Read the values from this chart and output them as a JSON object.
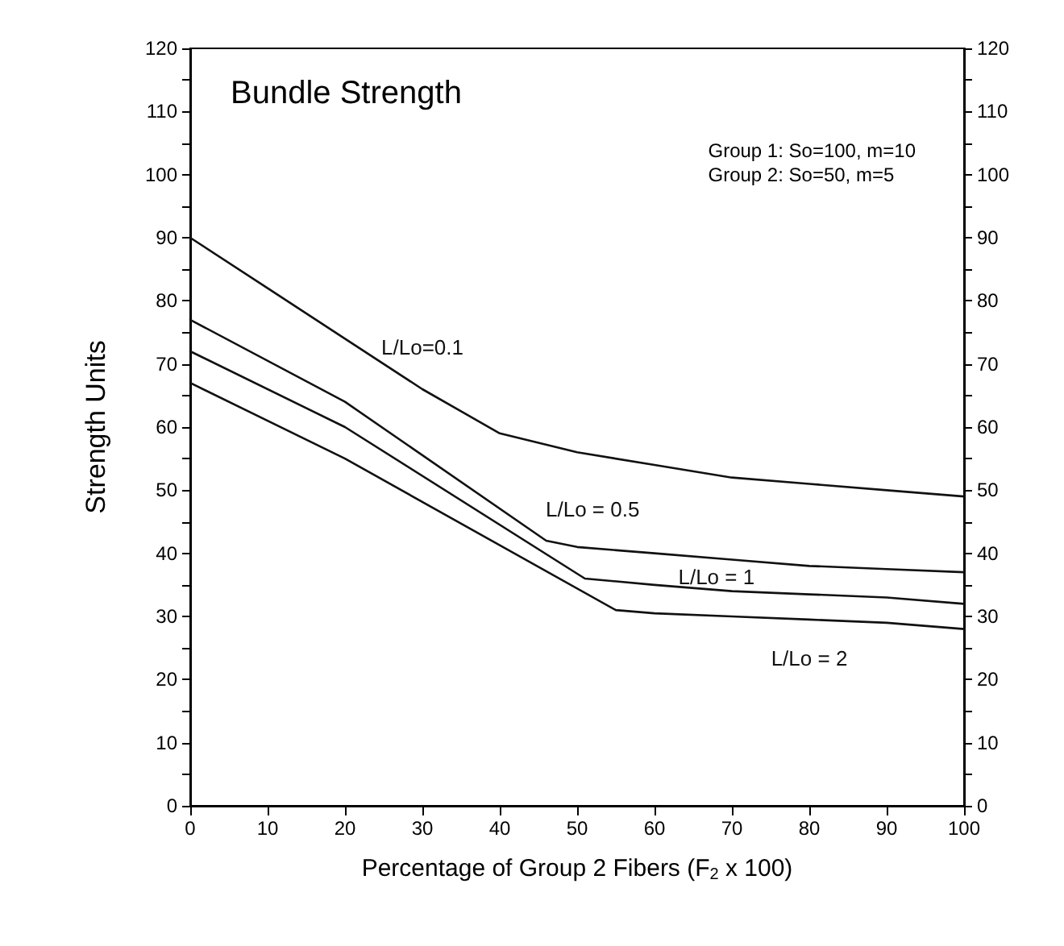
{
  "chart_data": {
    "type": "line",
    "title": "Bundle Strength",
    "xlabel": "Percentage of Group 2 Fibers (F$_{2}$ x 100)",
    "ylabel": "Strength Units",
    "x": [
      0,
      10,
      20,
      30,
      40,
      50,
      60,
      70,
      80,
      90,
      100
    ],
    "series": [
      {
        "name": "L/Lo=0.1",
        "color": "#111111",
        "values": [
          90,
          82,
          74,
          66,
          59,
          56,
          54,
          52,
          51,
          50,
          49
        ]
      },
      {
        "name": "L/Lo = 0.5",
        "color": "#111111",
        "x": [
          0,
          20,
          46,
          50,
          60,
          70,
          80,
          90,
          100
        ],
        "values": [
          77,
          64,
          42,
          41,
          40,
          39,
          38,
          37.5,
          37
        ]
      },
      {
        "name": "L/Lo = 1",
        "color": "#111111",
        "x": [
          0,
          20,
          51,
          60,
          70,
          80,
          90,
          100
        ],
        "values": [
          72,
          60,
          36,
          35,
          34,
          33.5,
          33,
          32
        ]
      },
      {
        "name": "L/Lo = 2",
        "color": "#111111",
        "x": [
          0,
          20,
          55,
          60,
          70,
          80,
          90,
          100
        ],
        "values": [
          67,
          55,
          31,
          30.5,
          30,
          29.5,
          29,
          28
        ]
      }
    ],
    "annotations": [
      "Group 1: So=100, m=10\nGroup 2: So=50, m=5"
    ],
    "xlim": [
      0,
      100
    ],
    "xticks": [
      0,
      10,
      20,
      30,
      40,
      50,
      60,
      70,
      80,
      90,
      100
    ],
    "ylim": [
      0,
      120
    ],
    "yticks": [
      0,
      10,
      20,
      30,
      40,
      50,
      60,
      70,
      80,
      90,
      100,
      110,
      120
    ],
    "y2lim": [
      0,
      120
    ],
    "y2ticks": [
      0,
      10,
      20,
      30,
      40,
      50,
      60,
      70,
      80,
      90,
      100,
      110,
      120
    ],
    "grid": false,
    "legend": false,
    "marker": "none",
    "line_style": "solid"
  }
}
